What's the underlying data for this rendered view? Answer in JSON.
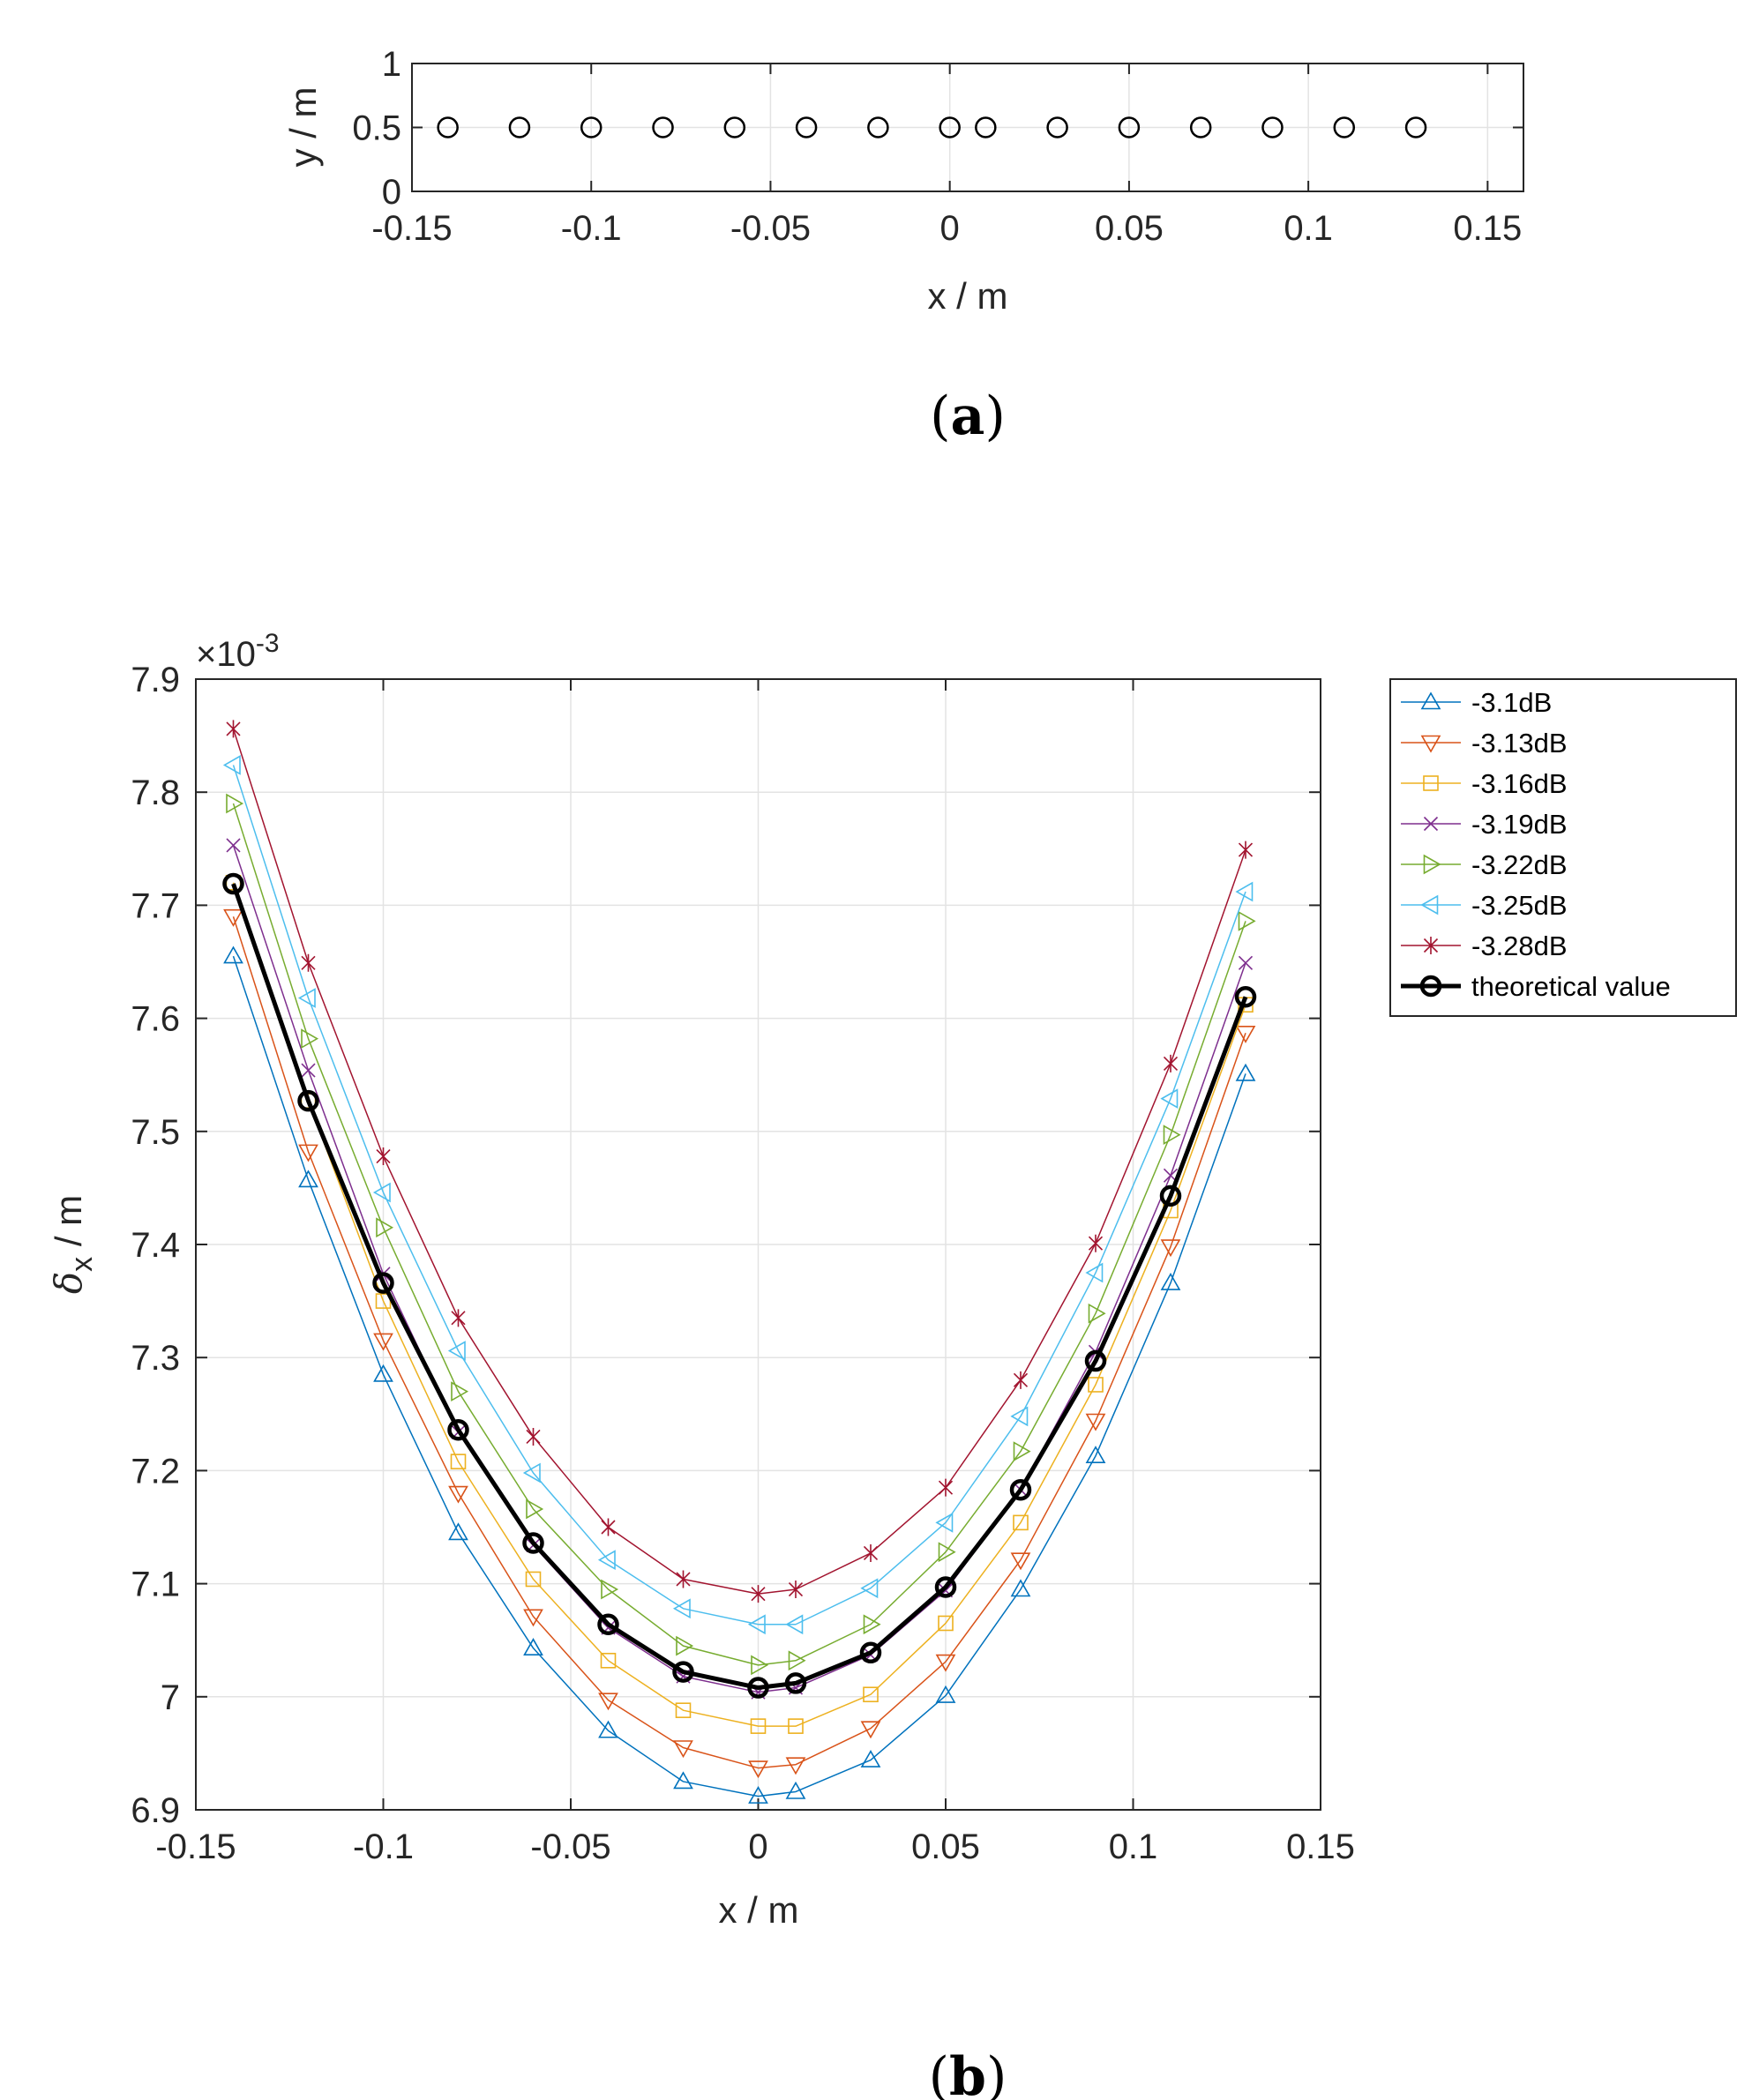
{
  "chart_data": [
    {
      "type": "scatter",
      "panel_label": "a",
      "xlabel": "x / m",
      "ylabel": "y / m",
      "xlim": [
        -0.15,
        0.16
      ],
      "ylim": [
        0,
        1
      ],
      "xticks": [
        -0.15,
        -0.1,
        -0.05,
        0,
        0.05,
        0.1,
        0.15
      ],
      "xtick_labels": [
        "-0.15",
        "-0.1",
        "-0.05",
        "0",
        "0.05",
        "0.1",
        "0.15"
      ],
      "yticks": [
        0,
        0.5,
        1
      ],
      "ytick_labels": [
        "0",
        "0.5",
        "1"
      ],
      "grid": true,
      "marker": "circle",
      "x": [
        -0.14,
        -0.12,
        -0.1,
        -0.08,
        -0.06,
        -0.04,
        -0.02,
        0,
        0.01,
        0.03,
        0.05,
        0.07,
        0.09,
        0.11,
        0.13
      ],
      "y": [
        0.5,
        0.5,
        0.5,
        0.5,
        0.5,
        0.5,
        0.5,
        0.5,
        0.5,
        0.5,
        0.5,
        0.5,
        0.5,
        0.5,
        0.5
      ]
    },
    {
      "type": "line",
      "panel_label": "b",
      "xlabel": "x / m",
      "ylabel_symbol": "δ",
      "ylabel_subscript": "x",
      "ylabel_unit": " / m",
      "exponent_label": "×10",
      "exponent_power": "-3",
      "xlim": [
        -0.15,
        0.15
      ],
      "ylim": [
        6.9,
        7.9
      ],
      "xticks": [
        -0.15,
        -0.1,
        -0.05,
        0,
        0.05,
        0.1,
        0.15
      ],
      "xtick_labels": [
        "-0.15",
        "-0.1",
        "-0.05",
        "0",
        "0.05",
        "0.1",
        "0.15"
      ],
      "yticks": [
        6.9,
        7.0,
        7.1,
        7.2,
        7.3,
        7.4,
        7.5,
        7.6,
        7.7,
        7.8,
        7.9
      ],
      "ytick_labels": [
        "6.9",
        "7",
        "7.1",
        "7.2",
        "7.3",
        "7.4",
        "7.5",
        "7.6",
        "7.7",
        "7.8",
        "7.9"
      ],
      "grid": true,
      "legend_position": "outside-right-top",
      "x": [
        -0.14,
        -0.12,
        -0.1,
        -0.08,
        -0.06,
        -0.04,
        -0.02,
        0,
        0.01,
        0.03,
        0.05,
        0.07,
        0.09,
        0.11,
        0.13
      ],
      "series": [
        {
          "name": "-3.1dB",
          "color": "#0072BD",
          "marker": "triangle-up",
          "values": [
            7.655,
            7.457,
            7.285,
            7.145,
            7.043,
            6.97,
            6.925,
            6.912,
            6.916,
            6.944,
            7.001,
            7.095,
            7.213,
            7.366,
            7.551
          ]
        },
        {
          "name": "-3.13dB",
          "color": "#D95319",
          "marker": "triangle-down",
          "values": [
            7.69,
            7.482,
            7.315,
            7.18,
            7.071,
            6.997,
            6.955,
            6.937,
            6.94,
            6.972,
            7.031,
            7.121,
            7.244,
            7.398,
            7.587
          ]
        },
        {
          "name": "-3.16dB",
          "color": "#EDB120",
          "marker": "square",
          "values": [
            7.72,
            7.527,
            7.35,
            7.208,
            7.104,
            7.032,
            6.988,
            6.974,
            6.974,
            7.002,
            7.065,
            7.154,
            7.276,
            7.43,
            7.612
          ]
        },
        {
          "name": "-3.19dB",
          "color": "#7E2F8E",
          "marker": "x",
          "values": [
            7.753,
            7.554,
            7.374,
            7.234,
            7.134,
            7.061,
            7.018,
            7.004,
            7.008,
            7.037,
            7.094,
            7.183,
            7.305,
            7.461,
            7.649
          ]
        },
        {
          "name": "-3.22dB",
          "color": "#77AC30",
          "marker": "triangle-right",
          "values": [
            7.79,
            7.582,
            7.415,
            7.27,
            7.166,
            7.095,
            7.045,
            7.028,
            7.032,
            7.064,
            7.128,
            7.217,
            7.339,
            7.497,
            7.686
          ]
        },
        {
          "name": "-3.25dB",
          "color": "#4DBEEE",
          "marker": "triangle-left",
          "values": [
            7.824,
            7.618,
            7.446,
            7.306,
            7.198,
            7.121,
            7.078,
            7.064,
            7.064,
            7.096,
            7.154,
            7.248,
            7.375,
            7.529,
            7.712
          ]
        },
        {
          "name": "-3.28dB",
          "color": "#A2142F",
          "marker": "asterisk",
          "values": [
            7.856,
            7.649,
            7.478,
            7.335,
            7.23,
            7.15,
            7.104,
            7.091,
            7.095,
            7.127,
            7.185,
            7.28,
            7.401,
            7.56,
            7.749
          ]
        },
        {
          "name": "theoretical value",
          "color": "#000000",
          "marker": "circle",
          "bold": true,
          "values": [
            7.719,
            7.527,
            7.366,
            7.236,
            7.136,
            7.064,
            7.022,
            7.008,
            7.012,
            7.039,
            7.097,
            7.183,
            7.297,
            7.443,
            7.619
          ]
        }
      ]
    }
  ]
}
